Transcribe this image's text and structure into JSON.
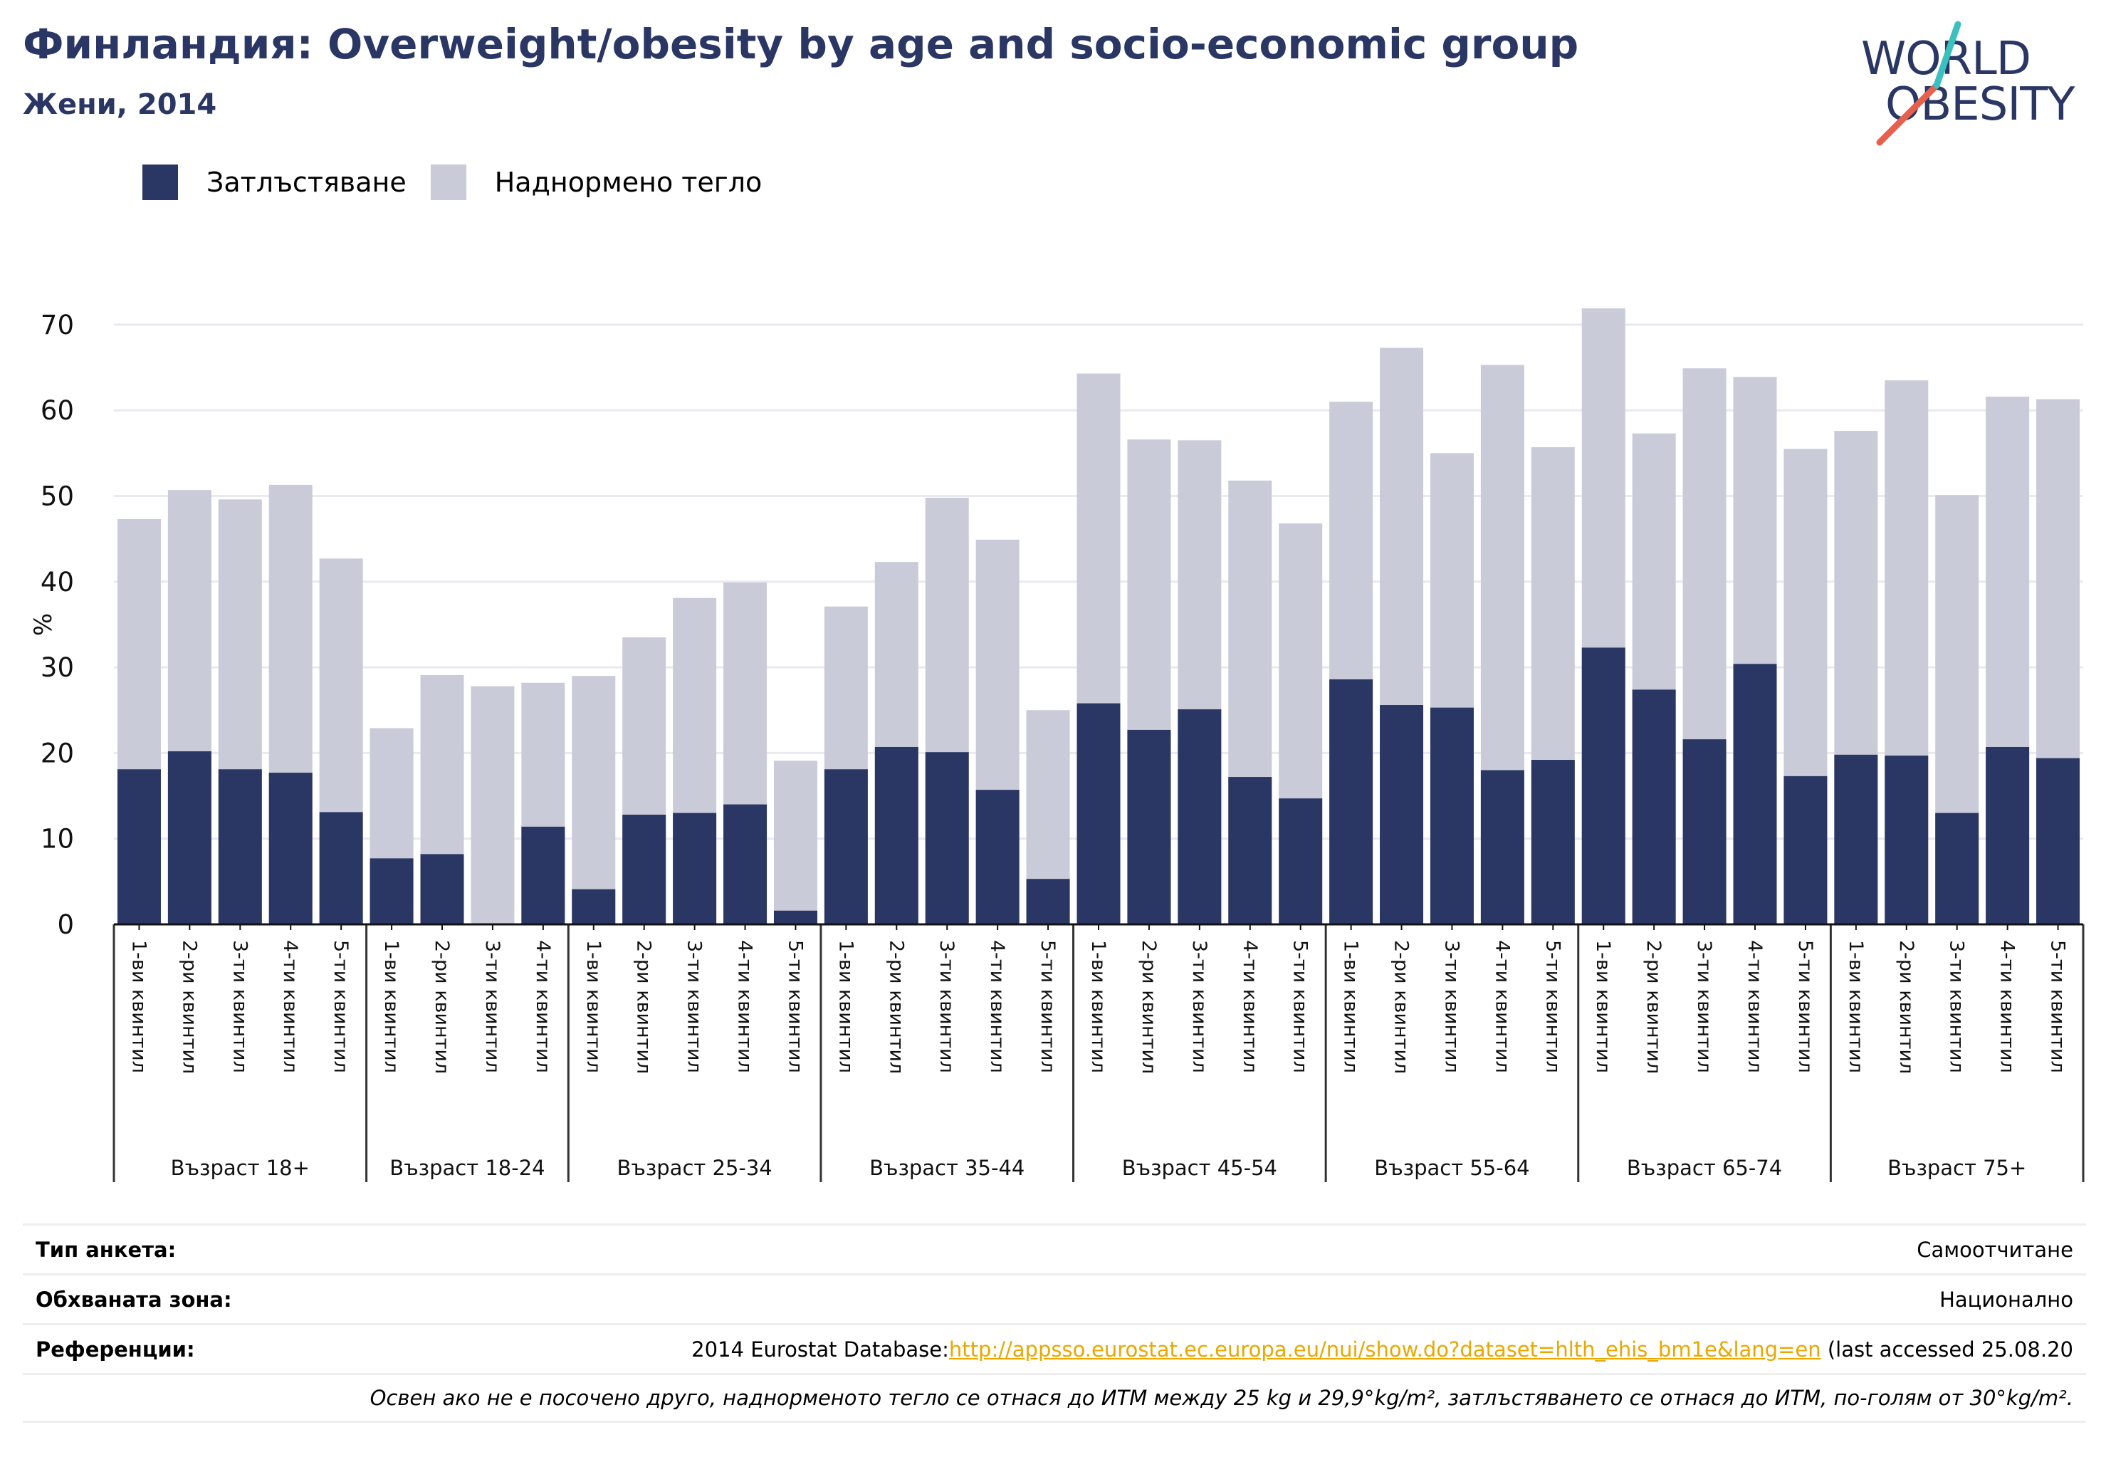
{
  "header": {
    "title": "Финландия: Overweight/obesity by age and socio-economic group",
    "subtitle": "Жени, 2014"
  },
  "logo": {
    "line1": "WORLD",
    "line2": "OBESITY"
  },
  "colors": {
    "obesity": "#2a3663",
    "overweight": "#c9cbd8",
    "title": "#2a3663",
    "link": "#e8a800",
    "logo_slash": "#e8604c",
    "logo_slash_top": "#3bbfbf"
  },
  "legend": {
    "obesity": "Затлъстяване",
    "overweight": "Наднормено тегло"
  },
  "chart_data": {
    "type": "bar",
    "stacked": false,
    "note": "Obesity bar overlays the overweight bar; the overweight bar height shows the combined overweight/obesity total.",
    "ylabel": "%",
    "ylim": [
      0,
      70
    ],
    "yticks": [
      0,
      10,
      20,
      30,
      40,
      50,
      60,
      70
    ],
    "grid": true,
    "legend_position": "top-left",
    "groups": [
      {
        "label": "Възраст 18+",
        "categories": [
          "1-ви квинтил",
          "2-ри квинтил",
          "3-ти квинтил",
          "4-ти квинтил",
          "5-ти квинтил"
        ],
        "obesity": [
          18.1,
          20.2,
          18.1,
          17.7,
          13.1
        ],
        "overweight": [
          47.3,
          50.7,
          49.6,
          51.3,
          42.7
        ]
      },
      {
        "label": "Възраст 18-24",
        "categories": [
          "1-ви квинтил",
          "2-ри квинтил",
          "3-ти квинтил",
          "4-ти квинтил"
        ],
        "obesity": [
          7.7,
          8.2,
          0,
          11.4
        ],
        "overweight": [
          22.9,
          29.1,
          27.8,
          28.2
        ]
      },
      {
        "label": "Възраст 25-34",
        "categories": [
          "1-ви квинтил",
          "2-ри квинтил",
          "3-ти квинтил",
          "4-ти квинтил",
          "5-ти квинтил"
        ],
        "obesity": [
          4.1,
          12.8,
          13.0,
          14.0,
          1.6
        ],
        "overweight": [
          29.0,
          33.5,
          38.1,
          39.9,
          19.1
        ]
      },
      {
        "label": "Възраст 35-44",
        "categories": [
          "1-ви квинтил",
          "2-ри квинтил",
          "3-ти квинтил",
          "4-ти квинтил",
          "5-ти квинтил"
        ],
        "obesity": [
          18.1,
          20.7,
          20.1,
          15.7,
          5.3
        ],
        "overweight": [
          37.1,
          42.3,
          49.8,
          44.9,
          25.0
        ]
      },
      {
        "label": "Възраст 45-54",
        "categories": [
          "1-ви квинтил",
          "2-ри квинтил",
          "3-ти квинтил",
          "4-ти квинтил",
          "5-ти квинтил"
        ],
        "obesity": [
          25.8,
          22.7,
          25.1,
          17.2,
          14.7
        ],
        "overweight": [
          64.3,
          56.6,
          56.5,
          51.8,
          46.8
        ]
      },
      {
        "label": "Възраст 55-64",
        "categories": [
          "1-ви квинтил",
          "2-ри квинтил",
          "3-ти квинтил",
          "4-ти квинтил",
          "5-ти квинтил"
        ],
        "obesity": [
          28.6,
          25.6,
          25.3,
          18.0,
          19.2
        ],
        "overweight": [
          61.0,
          67.3,
          55.0,
          65.3,
          55.7
        ]
      },
      {
        "label": "Възраст 65-74",
        "categories": [
          "1-ви квинтил",
          "2-ри квинтил",
          "3-ти квинтил",
          "4-ти квинтил",
          "5-ти квинтил"
        ],
        "obesity": [
          32.3,
          27.4,
          21.6,
          30.4,
          17.3
        ],
        "overweight": [
          71.9,
          57.3,
          64.9,
          63.9,
          55.5
        ]
      },
      {
        "label": "Възраст 75+",
        "categories": [
          "1-ви квинтил",
          "2-ри квинтил",
          "3-ти квинтил",
          "4-ти квинтил",
          "5-ти квинтил"
        ],
        "obesity": [
          19.8,
          19.7,
          13.0,
          20.7,
          19.4
        ],
        "overweight": [
          57.6,
          63.5,
          50.1,
          61.6,
          61.3
        ]
      }
    ]
  },
  "info": {
    "survey_label": "Тип анкета:",
    "survey_value": "Самоотчитане",
    "area_label": "Обхваната зона:",
    "area_value": "Национално",
    "refs_label": "Референции:",
    "refs_prefix": "2014 Eurostat Database:",
    "refs_link": "http://appsso.eurostat.ec.europa.eu/nui/show.do?dataset=hlth_ehis_bm1e&lang=en",
    "refs_suffix": " (last accessed 25.08.20",
    "footnote": "Освен ако не е посочено друго, наднорменото тегло се отнася до ИТМ между 25 kg и 29,9°kg/m², затлъстяването се отнася до ИТМ, по-голям от 30°kg/m²."
  }
}
